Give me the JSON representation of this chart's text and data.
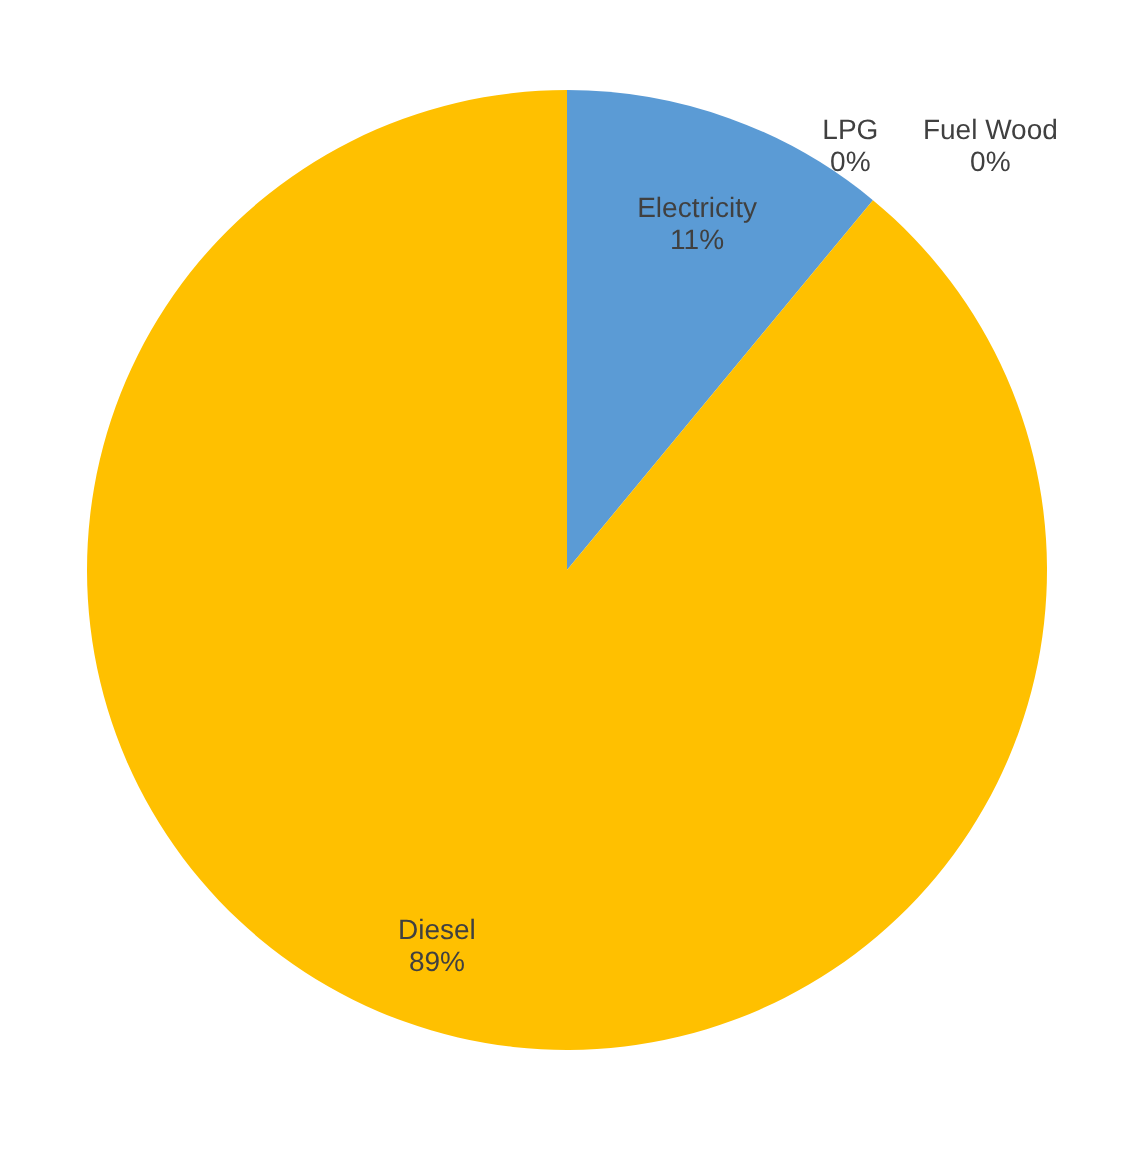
{
  "chart_data": {
    "type": "pie",
    "categories": [
      "Electricity",
      "LPG",
      "Fuel Wood",
      "Diesel"
    ],
    "values": [
      11,
      0,
      0,
      89
    ],
    "colors": [
      "#5b9bd5",
      "#ed7d31",
      "#a5a5a5",
      "#ffc000"
    ],
    "value_labels": [
      "11%",
      "0%",
      "0%",
      "89%"
    ]
  }
}
